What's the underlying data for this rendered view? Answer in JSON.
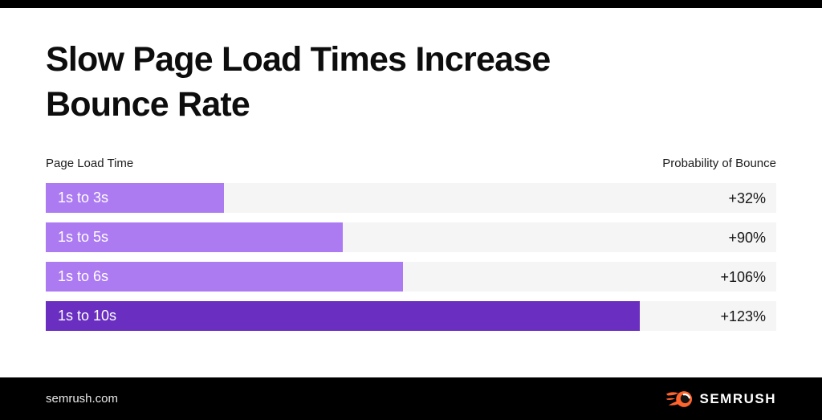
{
  "page": {
    "title_line1": "Slow Page Load Times Increase",
    "title_line2": "Bounce Rate",
    "footer": {
      "site": "semrush.com",
      "brand": "SEMRUSH"
    }
  },
  "chart_data": {
    "type": "bar",
    "orientation": "horizontal",
    "title": "Slow Page Load Times Increase Bounce Rate",
    "left_header": "Page Load Time",
    "right_header": "Probability of Bounce",
    "categories": [
      "1s to 3s",
      "1s to 5s",
      "1s to 6s",
      "1s to 10s"
    ],
    "values": [
      32,
      90,
      106,
      123
    ],
    "value_labels": [
      "+32%",
      "+90%",
      "+106%",
      "+123%"
    ],
    "bar_pct": [
      24.4,
      40.7,
      48.9,
      81.3
    ],
    "colors": {
      "bar_light": "#AC7BF2",
      "bar_dark": "#6A2FC0",
      "track": "#F5F5F6",
      "brand_orange": "#FF642D",
      "frame_black": "#000000"
    },
    "rows": [
      {
        "label": "1s to 3s",
        "value_label": "+32%",
        "bar_pct": 24.4,
        "color": "#AC7BF2"
      },
      {
        "label": "1s to 5s",
        "value_label": "+90%",
        "bar_pct": 40.7,
        "color": "#AC7BF2"
      },
      {
        "label": "1s to 6s",
        "value_label": "+106%",
        "bar_pct": 48.9,
        "color": "#AC7BF2"
      },
      {
        "label": "1s to 10s",
        "value_label": "+123%",
        "bar_pct": 81.3,
        "color": "#6A2FC0"
      }
    ]
  }
}
